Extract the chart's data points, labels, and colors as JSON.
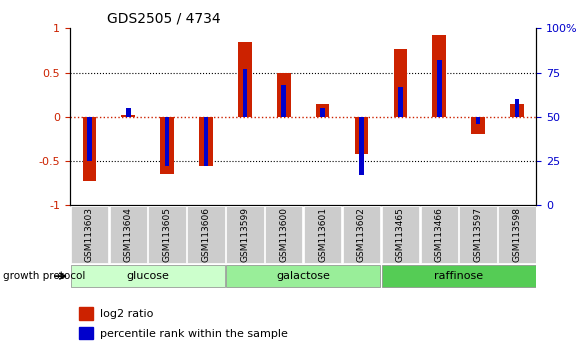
{
  "title": "GDS2505 / 4734",
  "samples": [
    "GSM113603",
    "GSM113604",
    "GSM113605",
    "GSM113606",
    "GSM113599",
    "GSM113600",
    "GSM113601",
    "GSM113602",
    "GSM113465",
    "GSM113466",
    "GSM113597",
    "GSM113598"
  ],
  "log2_ratio": [
    -0.72,
    0.02,
    -0.65,
    -0.56,
    0.85,
    0.5,
    0.14,
    -0.42,
    0.77,
    0.93,
    -0.19,
    0.15
  ],
  "percentile_rank": [
    25,
    55,
    22,
    22,
    77,
    68,
    55,
    17,
    67,
    82,
    46,
    60
  ],
  "groups": [
    {
      "label": "glucose",
      "start": 0,
      "end": 4,
      "color": "#ccffcc"
    },
    {
      "label": "galactose",
      "start": 4,
      "end": 8,
      "color": "#99ee99"
    },
    {
      "label": "raffinose",
      "start": 8,
      "end": 12,
      "color": "#55cc55"
    }
  ],
  "bar_color_red": "#cc2200",
  "bar_color_blue": "#0000cc",
  "bar_width": 0.35,
  "blue_bar_width": 0.12,
  "ylim": [
    -1,
    1
  ],
  "y2lim": [
    0,
    100
  ],
  "yticks": [
    -1,
    -0.5,
    0,
    0.5,
    1
  ],
  "y2ticks": [
    0,
    25,
    50,
    75,
    100
  ],
  "y2ticklabels": [
    "0",
    "25",
    "50",
    "75",
    "100%"
  ],
  "hline_color_red": "#cc2200",
  "hline_color_black": "#000000",
  "dotted_hlines": [
    -0.5,
    0.5
  ],
  "legend_red": "log2 ratio",
  "legend_blue": "percentile rank within the sample",
  "growth_protocol_label": "growth protocol",
  "bg_color": "#ffffff"
}
